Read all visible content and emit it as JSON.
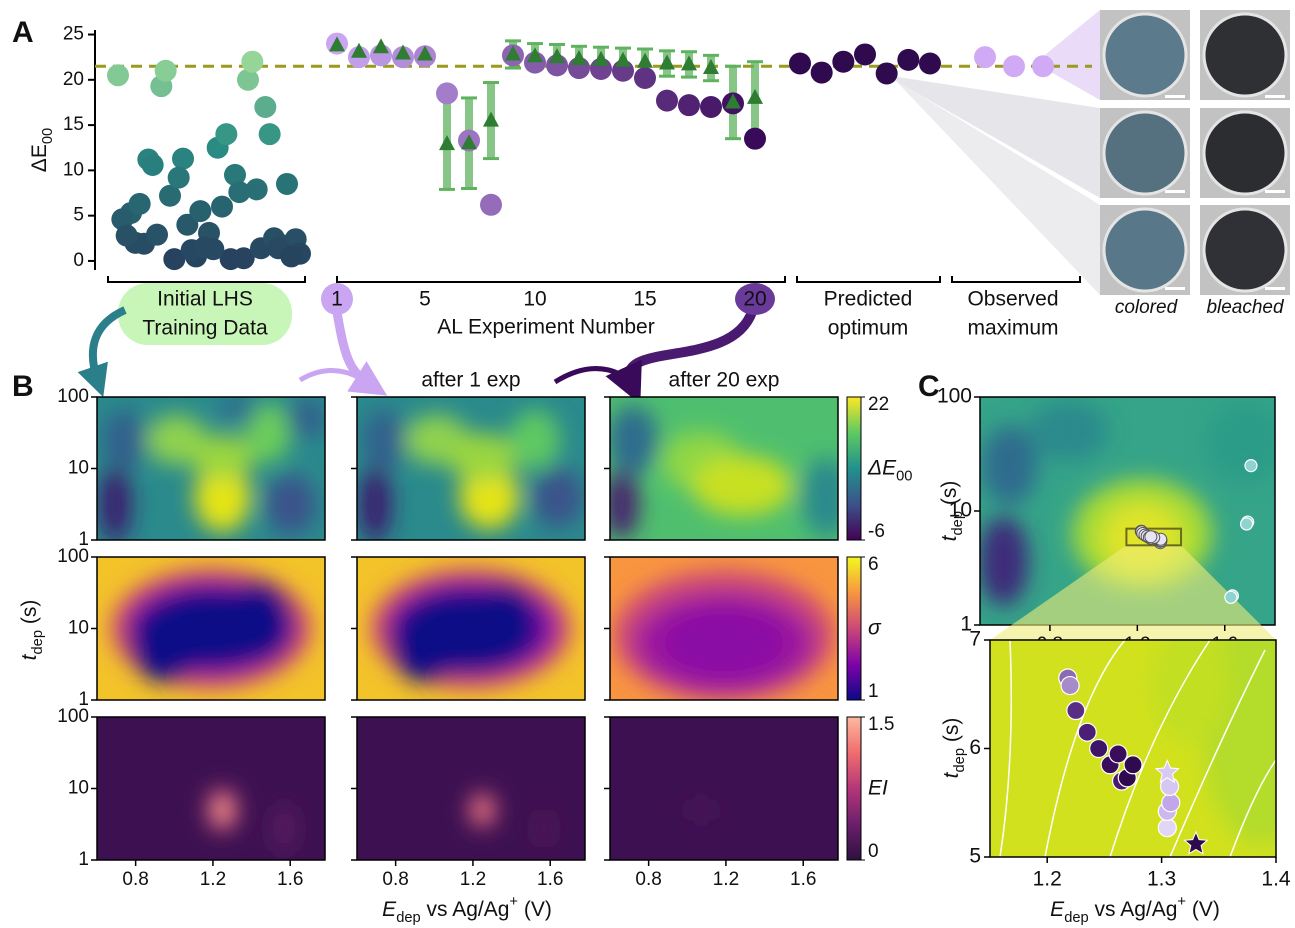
{
  "chart_data": [
    {
      "type": "scatter",
      "panel": "A",
      "y_label": "ΔE",
      "y_label_sub": "00",
      "ylim": [
        -1,
        25.5
      ],
      "yticks": [
        0,
        5,
        10,
        15,
        20,
        25
      ],
      "reference_line": 21.5,
      "reference_color": "#9a9a1e",
      "lhs": {
        "label": [
          "Initial LHS",
          "Training Data"
        ],
        "colors": [
          "#27415e",
          "#2a8c84",
          "#bdf0a0"
        ],
        "values": [
          20.5,
          12.5,
          5.3,
          0.2,
          1.9,
          0.3,
          2.9,
          7.9,
          7.2,
          14,
          11.3,
          1.7,
          0.5,
          2.4,
          3.1,
          4.6,
          6.0,
          2.0,
          9.5,
          11.2,
          20,
          19.3,
          1.4,
          0.2,
          2.5,
          4.0,
          8.5,
          5.5,
          0.8,
          1.3,
          2.8,
          14,
          6.3,
          7.6,
          10.6,
          22,
          21,
          17,
          9.2,
          1.4,
          1.2,
          0.5,
          1.5
        ]
      },
      "al": {
        "x_label": "AL Experiment Number",
        "x": [
          1,
          2,
          3,
          4,
          5,
          6,
          7,
          8,
          9,
          10,
          11,
          12,
          13,
          14,
          15,
          16,
          17,
          18,
          19,
          20
        ],
        "xlim": [
          1,
          20
        ],
        "xticks": [
          1,
          5,
          10,
          15,
          20
        ],
        "observed": [
          24.0,
          22.5,
          22.7,
          22.5,
          22.6,
          18.5,
          13.3,
          6.2,
          22.7,
          21.9,
          21.6,
          21.3,
          21.2,
          21.0,
          20.2,
          17.7,
          17.2,
          17.0,
          17.4,
          13.5
        ],
        "observed_colors": [
          "#c9a5f2",
          "#3a0a5a"
        ],
        "predicted": [
          23.8,
          23.1,
          23.6,
          22.9,
          22.8,
          12.9,
          13.0,
          15.5,
          22.8,
          22.6,
          22.5,
          22.3,
          22.2,
          22.1,
          22.0,
          21.8,
          21.7,
          21.3,
          17.5,
          18.0
        ],
        "predicted_error": [
          null,
          null,
          null,
          null,
          null,
          5,
          5,
          4.2,
          1.5,
          1.4,
          1.4,
          1.4,
          1.4,
          1.4,
          1.4,
          1.4,
          1.4,
          1.4,
          4,
          4
        ],
        "predicted_color": "#2e7d32",
        "error_color": "#5fb35f"
      },
      "optimum": {
        "label": [
          "Predicted",
          "optimum"
        ],
        "color": "#2f0a4f",
        "values": [
          21.8,
          20.8,
          22.0,
          22.8,
          20.7,
          22.2,
          21.8
        ]
      },
      "maximum": {
        "label": [
          "Observed",
          "maximum"
        ],
        "color": "#d0aaf5",
        "values": [
          22.5,
          21.5,
          21.5
        ]
      },
      "image_labels": [
        "colored",
        "bleached"
      ]
    },
    {
      "type": "heatmap",
      "panel": "B",
      "column_titles": [
        "after 1 exp",
        "after 20 exp"
      ],
      "xlim": [
        0.6,
        1.78
      ],
      "xticks": [
        0.8,
        1.2,
        1.6
      ],
      "ylim": [
        1,
        100
      ],
      "yticks": [
        1,
        10,
        100
      ],
      "y_log": true,
      "x_label": [
        "E",
        "dep",
        " vs Ag/Ag",
        "+",
        " (V)"
      ],
      "y_label": [
        "t",
        "dep",
        " (s)"
      ],
      "colorbars": [
        {
          "label": "ΔE",
          "label_sub": "00",
          "lim": [
            -6,
            22
          ],
          "ticks": [
            -6,
            22
          ],
          "colors": [
            "#440154",
            "#3b528b",
            "#21918c",
            "#5ec962",
            "#fde725"
          ]
        },
        {
          "label": "σ",
          "lim": [
            1,
            6
          ],
          "ticks": [
            1,
            6
          ],
          "colors": [
            "#0d0887",
            "#7e03a8",
            "#cc4778",
            "#f89540",
            "#f0f921"
          ]
        },
        {
          "label": "EI",
          "lim": [
            0,
            1.5
          ],
          "ticks": [
            0,
            1.5
          ],
          "colors": [
            "#2d1140",
            "#6b1f6b",
            "#b53679",
            "#f06d6d",
            "#fcb9a0"
          ]
        }
      ]
    },
    {
      "type": "scatter",
      "panel": "C",
      "xlim": [
        0.48,
        1.83
      ],
      "xticks": [
        0.8,
        1.2,
        1.6
      ],
      "ylim": [
        1,
        100
      ],
      "yticks": [
        1,
        10,
        100
      ],
      "y_log": true,
      "y_label": [
        "t",
        "dep",
        " (s)"
      ],
      "zoom": {
        "xlim": [
          1.15,
          1.4
        ],
        "xticks": [
          1.2,
          1.3,
          1.4
        ],
        "ylim": [
          5,
          7
        ],
        "yticks": [
          5,
          6,
          7
        ],
        "x_label": [
          "E",
          "dep",
          " vs Ag/Ag",
          "+",
          " (V)"
        ],
        "y_label": [
          "t",
          "dep",
          " (s)"
        ]
      },
      "points": {
        "x": [
          1.305,
          1.305,
          1.308,
          1.307,
          1.218,
          1.22,
          1.225,
          1.235,
          1.245,
          1.255,
          1.265,
          1.27,
          1.275,
          1.262
        ],
        "y": [
          5.27,
          5.42,
          5.5,
          5.65,
          6.65,
          6.58,
          6.35,
          6.15,
          6.0,
          5.85,
          5.7,
          5.73,
          5.85,
          5.95
        ],
        "colors": [
          "#e2d6f5",
          "#cdb8ee",
          "#c2a6ea",
          "#d6c6f2",
          "#8a6ab5",
          "#a58bca",
          "#5a2d85",
          "#4a1f75",
          "#3e1468",
          "#3a0d5c",
          "#4a1a70",
          "#2f0a4f",
          "#2f0a4f",
          "#3a0d5c"
        ]
      },
      "outliers": {
        "x": [
          1.72,
          1.705,
          1.7,
          1.635,
          1.628
        ],
        "y": [
          25,
          8,
          7.7,
          1.8,
          1.75
        ],
        "color": "#8fd3d0"
      },
      "stars": {
        "x": [
          1.305,
          1.33
        ],
        "y": [
          5.78,
          5.12
        ],
        "colors": [
          "#d9c9f2",
          "#2f0a4f"
        ]
      }
    }
  ]
}
